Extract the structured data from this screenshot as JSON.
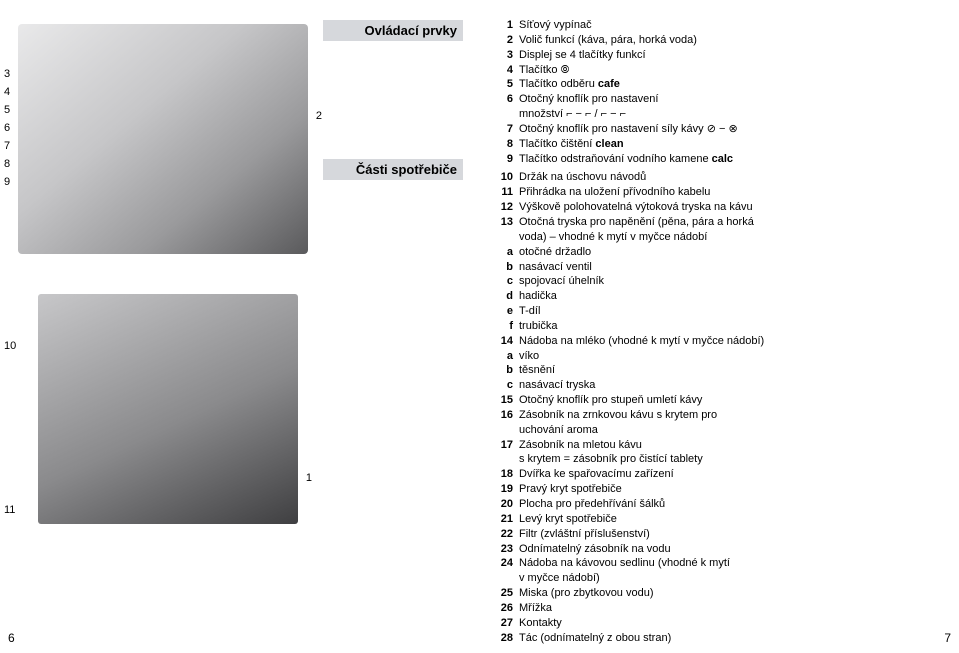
{
  "headings": {
    "h1": "Ovládací prvky",
    "h2": "Části spotřebiče"
  },
  "labels_img1": {
    "l3": "3",
    "l4": "4",
    "l5": "5",
    "l6": "6",
    "l7": "7",
    "l8": "8",
    "l9": "9",
    "l2": "2"
  },
  "labels_img2": {
    "l10": "10",
    "l11": "11",
    "l1": "1"
  },
  "items": [
    {
      "k": "1",
      "t": "Síťový vypínač"
    },
    {
      "k": "2",
      "t": "Volič funkcí (káva, pára, horká voda)"
    },
    {
      "k": "3",
      "t": "Displej se 4 tlačítky funkcí"
    },
    {
      "k": "4",
      "t": "Tlačítko ⦾"
    },
    {
      "k": "5",
      "t": "Tlačítko odběru cafe",
      "bold_last": "cafe"
    },
    {
      "k": "6",
      "t": "Otočný knoflík pro nastavení",
      "cont": "množství ⌐ − ⌐ / ⌐ − ⌐"
    },
    {
      "k": "7",
      "t": "Otočný knoflík pro nastavení síly kávy ⊘ − ⊗"
    },
    {
      "k": "8",
      "t": "Tlačítko čištění clean",
      "bold_last": "clean"
    },
    {
      "k": "9",
      "t": "Tlačítko odstraňování vodního kamene calc",
      "bold_last": "calc"
    },
    {
      "k": "10",
      "t": "Držák na úschovu návodů"
    },
    {
      "k": "11",
      "t": "Přihrádka na uložení přívodního kabelu"
    },
    {
      "k": "12",
      "t": "Výškově polohovatelná výtoková tryska na kávu"
    },
    {
      "k": "13",
      "t": "Otočná tryska pro napěnění (pěna, pára a horká",
      "cont": "voda) – vhodné k mytí v myčce nádobí"
    },
    {
      "k": "a",
      "t": "otočné držadlo"
    },
    {
      "k": "b",
      "t": "nasávací ventil"
    },
    {
      "k": "c",
      "t": "spojovací úhelník"
    },
    {
      "k": "d",
      "t": "hadička"
    },
    {
      "k": "e",
      "t": "T-díl"
    },
    {
      "k": "f",
      "t": "trubička"
    },
    {
      "k": "14",
      "t": "Nádoba na mléko (vhodné k mytí v myčce nádobí)"
    },
    {
      "k": "a",
      "t": "víko"
    },
    {
      "k": "b",
      "t": "těsnění"
    },
    {
      "k": "c",
      "t": "nasávací tryska"
    },
    {
      "k": "15",
      "t": "Otočný knoflík pro stupeň umletí kávy"
    },
    {
      "k": "16",
      "t": "Zásobník na zrnkovou kávu s krytem pro",
      "cont": "uchování aroma"
    },
    {
      "k": "17",
      "t": "Zásobník na mletou kávu",
      "cont": "s krytem = zásobník pro čistící tablety"
    },
    {
      "k": "18",
      "t": "Dvířka ke spařovacímu zařízení"
    },
    {
      "k": "19",
      "t": "Pravý kryt spotřebiče"
    },
    {
      "k": "20",
      "t": "Plocha pro předehřívání šálků"
    },
    {
      "k": "21",
      "t": "Levý kryt spotřebiče"
    },
    {
      "k": "22",
      "t": "Filtr (zvláštní příslušenství)"
    },
    {
      "k": "23",
      "t": "Odnímatelný zásobník na vodu"
    },
    {
      "k": "24",
      "t": "Nádoba na kávovou sedlinu (vhodné k mytí",
      "cont": "v myčce nádobí)"
    },
    {
      "k": "25",
      "t": "Miska (pro zbytkovou vodu)"
    },
    {
      "k": "26",
      "t": "Mřížka"
    },
    {
      "k": "27",
      "t": "Kontakty"
    },
    {
      "k": "28",
      "t": "Tác (odnímatelný z obou stran)"
    }
  ],
  "page_left": "6",
  "page_right": "7"
}
